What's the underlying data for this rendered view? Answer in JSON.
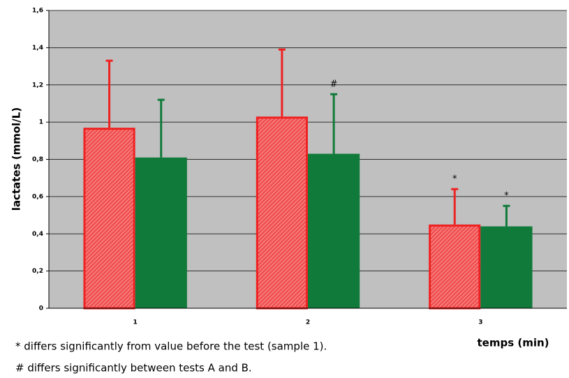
{
  "chart_data": {
    "type": "bar",
    "ylabel": "lactates (mmol/L)",
    "xlabel": "temps (min)",
    "categories": [
      "1",
      "2",
      "3"
    ],
    "series": [
      {
        "color": "#ee2222",
        "values": [
          0.97,
          1.03,
          0.45
        ],
        "errors": [
          0.36,
          0.36,
          0.19
        ],
        "markers": [
          null,
          null,
          "*"
        ]
      },
      {
        "color": "#107a3a",
        "values": [
          0.81,
          0.83,
          0.44
        ],
        "errors": [
          0.31,
          0.32,
          0.11
        ],
        "markers": [
          null,
          "#",
          "*"
        ]
      }
    ],
    "ylim": [
      0,
      1.6
    ],
    "yticks": [
      0,
      {
        "value": 0.2,
        "label": "0,2"
      },
      {
        "value": 0.4,
        "label": "0,4"
      },
      {
        "value": 0.6,
        "label": "0,6"
      },
      {
        "value": 0.8,
        "label": "0,8"
      },
      1,
      {
        "value": 1.2,
        "label": "1,2"
      },
      {
        "value": 1.4,
        "label": "1,4"
      },
      {
        "value": 1.6,
        "label": "1,6"
      }
    ],
    "grid": true,
    "notes": [
      "* differs significantly from value before the test (sample 1).",
      "# differs significantly between tests A and B."
    ]
  }
}
